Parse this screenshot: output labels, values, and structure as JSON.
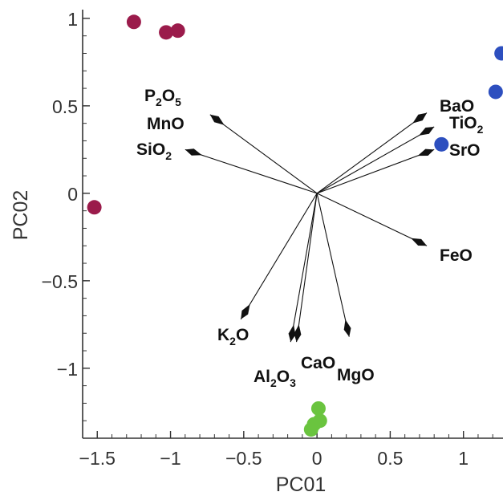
{
  "chart_data": {
    "type": "scatter",
    "xlabel": "PC01",
    "ylabel": "PC02",
    "xlim": [
      -1.6,
      1.27
    ],
    "ylim": [
      -1.4,
      1.05
    ],
    "x_ticks": [
      -1.5,
      -1,
      -0.5,
      0,
      0.5,
      1
    ],
    "x_tick_labels": [
      "−1.5",
      "−1",
      "−0.5",
      "0",
      "0.5",
      "1"
    ],
    "y_ticks": [
      -1,
      -0.5,
      0,
      0.5,
      1
    ],
    "y_tick_labels": [
      "−1",
      "−0.5",
      "0",
      "0.5",
      "1"
    ],
    "grid": false,
    "colors": {
      "group_a": "#9b1b4b",
      "group_b": "#2d4fbf",
      "group_c": "#6ac43f",
      "vector": "#111111",
      "axis": "#333333"
    },
    "series": [
      {
        "color": "#9b1b4b",
        "points": [
          [
            -1.25,
            0.98
          ],
          [
            -1.03,
            0.92
          ],
          [
            -0.95,
            0.93
          ],
          [
            -1.52,
            -0.08
          ]
        ]
      },
      {
        "color": "#2d4fbf",
        "points": [
          [
            1.26,
            0.8
          ],
          [
            1.22,
            0.58
          ],
          [
            0.85,
            0.28
          ]
        ]
      },
      {
        "color": "#6ac43f",
        "points": [
          [
            0.01,
            -1.23
          ],
          [
            0.02,
            -1.3
          ],
          [
            -0.02,
            -1.32
          ],
          [
            -0.04,
            -1.35
          ]
        ]
      }
    ],
    "loadings": [
      {
        "label": "P",
        "sub": "2",
        "label2": "O",
        "sub2": "5",
        "x": -0.73,
        "y": 0.45
      },
      {
        "label": "MnO",
        "x": -0.73,
        "y": 0.45
      },
      {
        "label": "SiO",
        "sub": "2",
        "x": -0.9,
        "y": 0.25
      },
      {
        "label": "BaO",
        "x": 0.75,
        "y": 0.46
      },
      {
        "label": "TiO",
        "sub": "2",
        "x": 0.8,
        "y": 0.38
      },
      {
        "label": "SrO",
        "x": 0.8,
        "y": 0.25
      },
      {
        "label": "FeO",
        "x": 0.75,
        "y": -0.3
      },
      {
        "label": "K",
        "sub": "2",
        "label2": "O",
        "x": -0.52,
        "y": -0.72
      },
      {
        "label": "Al",
        "sub": "2",
        "label2": "O",
        "sub2": "3",
        "x": -0.18,
        "y": -0.85
      },
      {
        "label": "CaO",
        "x": -0.14,
        "y": -0.85
      },
      {
        "label": "MgO",
        "x": 0.22,
        "y": -0.82
      }
    ]
  }
}
